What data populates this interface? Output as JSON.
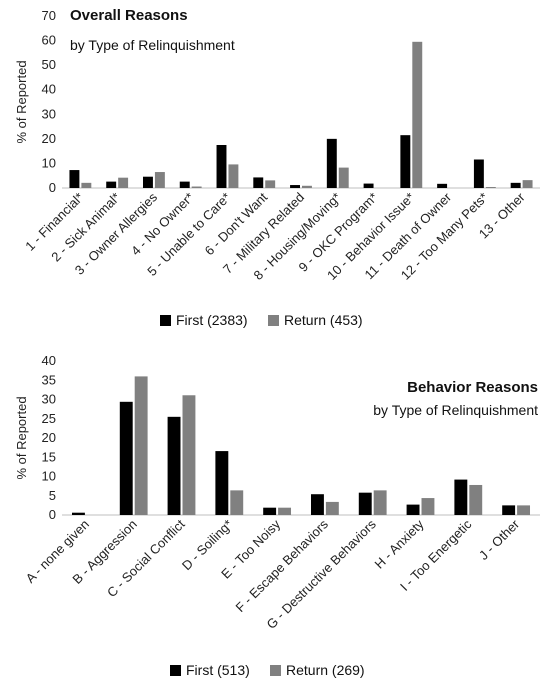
{
  "chart_data": [
    {
      "type": "bar",
      "title": "Overall Reasons",
      "subtitle": "by Type of Relinquishment",
      "xlabel": "",
      "ylabel": "% of Reported",
      "ylim": [
        0,
        70
      ],
      "yticks": [
        0,
        10,
        20,
        30,
        40,
        50,
        60,
        70
      ],
      "grid": false,
      "legend_position": "bottom",
      "categories": [
        "1 - Financial*",
        "2 - Sick Animal*",
        "3 - Owner Allergies",
        "4 - No Owner*",
        "5 - Unable to Care*",
        "6 - Don't Want",
        "7 - Military Related",
        "8 - Housing/Moving*",
        "9 - OKC Program*",
        "10 - Behavior Issue*",
        "11 - Death of Owner",
        "12 - Too Many Pets*",
        "13 - Other"
      ],
      "series": [
        {
          "name": "First (2383)",
          "color": "#000000",
          "values": [
            7.3,
            2.6,
            4.6,
            2.6,
            17.5,
            4.3,
            1.2,
            20.0,
            1.8,
            21.5,
            1.7,
            11.6,
            2.1
          ]
        },
        {
          "name": "Return (453)",
          "color": "#808080",
          "values": [
            2.1,
            4.2,
            6.5,
            0.6,
            9.6,
            3.1,
            0.9,
            8.3,
            0.0,
            59.5,
            0.0,
            0.4,
            3.2
          ]
        }
      ]
    },
    {
      "type": "bar",
      "title": "Behavior Reasons",
      "subtitle": "by Type of Relinquishment",
      "xlabel": "",
      "ylabel": "% of Reported",
      "ylim": [
        0,
        40
      ],
      "yticks": [
        0,
        5,
        10,
        15,
        20,
        25,
        30,
        35,
        40
      ],
      "grid": false,
      "legend_position": "bottom",
      "categories": [
        "A - none given",
        "B - Aggression",
        "C - Social Conflict",
        "D - Soiling*",
        "E - Too Noisy",
        "F - Escape Behaviors",
        "G - Destructive Behaviors",
        "H - Anxiety",
        "I - Too Energetic",
        "J - Other"
      ],
      "series": [
        {
          "name": "First (513)",
          "color": "#000000",
          "values": [
            0.6,
            29.4,
            25.5,
            16.6,
            1.9,
            5.4,
            5.8,
            2.7,
            9.2,
            2.5
          ]
        },
        {
          "name": "Return (269)",
          "color": "#808080",
          "values": [
            0.0,
            36.0,
            31.1,
            6.4,
            1.9,
            3.4,
            6.4,
            4.4,
            7.8,
            2.5
          ]
        }
      ]
    }
  ]
}
